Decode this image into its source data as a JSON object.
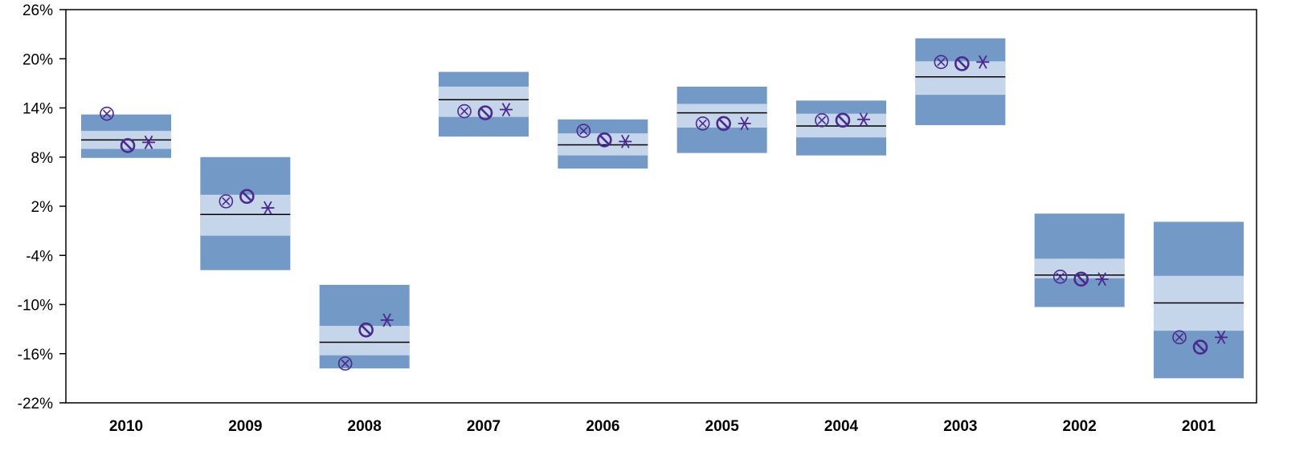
{
  "chart_data": {
    "type": "box-range",
    "title": "",
    "xlabel": "",
    "ylabel": "",
    "ylim": [
      -22,
      26
    ],
    "y_ticks": [
      26,
      20,
      14,
      8,
      2,
      -4,
      -10,
      -16,
      -22
    ],
    "y_tick_labels": [
      "26%",
      "20%",
      "14%",
      "8%",
      "2%",
      "-4%",
      "-10%",
      "-16%",
      "-22%"
    ],
    "categories": [
      "2010",
      "2009",
      "2008",
      "2007",
      "2006",
      "2005",
      "2004",
      "2003",
      "2002",
      "2001"
    ],
    "ranges": [
      {
        "outer": [
          7.9,
          13.2
        ],
        "inner": [
          9.0,
          11.2
        ],
        "median": 10.1
      },
      {
        "outer": [
          -5.8,
          8.0
        ],
        "inner": [
          -1.6,
          3.4
        ],
        "median": 1.0
      },
      {
        "outer": [
          -17.8,
          -7.6
        ],
        "inner": [
          -16.2,
          -12.6
        ],
        "median": -14.6
      },
      {
        "outer": [
          10.5,
          18.4
        ],
        "inner": [
          12.9,
          16.6
        ],
        "median": 15.0
      },
      {
        "outer": [
          6.6,
          12.6
        ],
        "inner": [
          8.2,
          10.9
        ],
        "median": 9.5
      },
      {
        "outer": [
          8.5,
          16.6
        ],
        "inner": [
          11.6,
          14.5
        ],
        "median": 13.4
      },
      {
        "outer": [
          8.2,
          14.9
        ],
        "inner": [
          10.4,
          13.3
        ],
        "median": 11.8
      },
      {
        "outer": [
          11.9,
          22.5
        ],
        "inner": [
          15.6,
          19.7
        ],
        "median": 17.8
      },
      {
        "outer": [
          -10.3,
          1.1
        ],
        "inner": [
          -6.8,
          -4.4
        ],
        "median": -6.4
      },
      {
        "outer": [
          -19.0,
          0.1
        ],
        "inner": [
          -13.2,
          -6.5
        ],
        "median": -9.8
      }
    ],
    "series": [
      {
        "marker": "circle-x",
        "values": [
          13.3,
          2.6,
          -17.2,
          13.6,
          11.2,
          12.1,
          12.5,
          19.6,
          -6.6,
          -14.0
        ]
      },
      {
        "marker": "circle-slash",
        "values": [
          9.4,
          3.2,
          -13.1,
          13.4,
          10.1,
          12.1,
          12.5,
          19.4,
          -6.9,
          -15.2
        ]
      },
      {
        "marker": "asterisk",
        "values": [
          9.8,
          1.8,
          -11.9,
          13.8,
          9.9,
          12.1,
          12.6,
          19.6,
          -6.9,
          -14.0
        ]
      }
    ],
    "colors": {
      "outer": "#7399c6",
      "inner": "#c5d5ea",
      "median": "#000000",
      "marker": "#4a2a8c"
    },
    "grid": false,
    "legend": "none"
  }
}
